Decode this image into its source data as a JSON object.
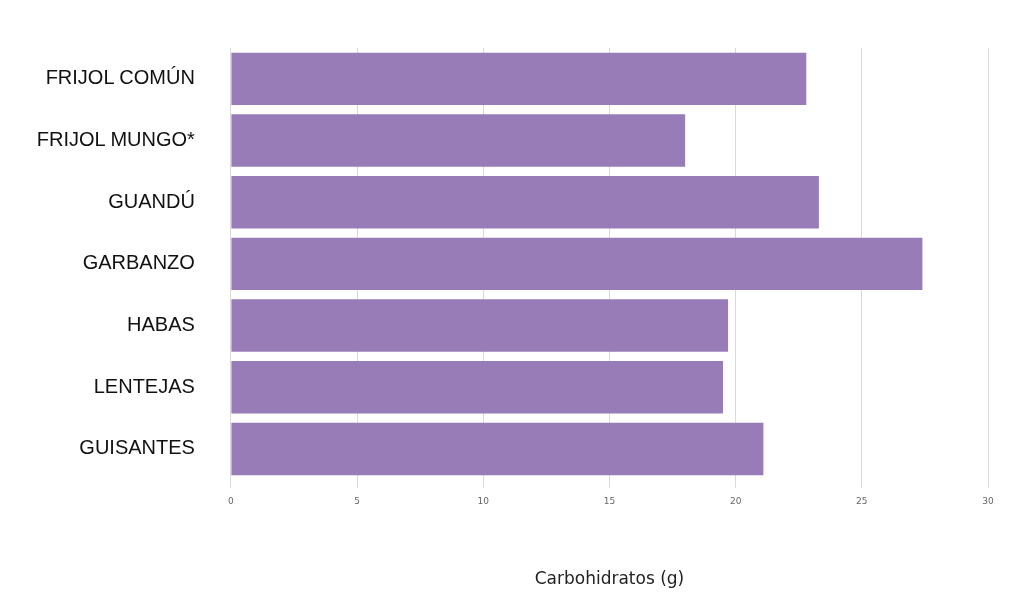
{
  "chart_data": {
    "type": "bar",
    "orientation": "horizontal",
    "xlabel": "Carbohidratos (g)",
    "categories": [
      "FRIJOL COMÚN",
      "FRIJOL MUNGO*",
      "GUANDÚ",
      "GARBANZO",
      "HABAS",
      "LENTEJAS",
      "GUISANTES"
    ],
    "values": [
      22.8,
      18.0,
      23.3,
      27.4,
      19.7,
      19.5,
      21.1
    ],
    "color": "#977cb8",
    "xlim": [
      0,
      30
    ],
    "xticks": [
      0,
      5,
      10,
      15,
      20,
      25,
      30
    ],
    "grid": "x"
  }
}
